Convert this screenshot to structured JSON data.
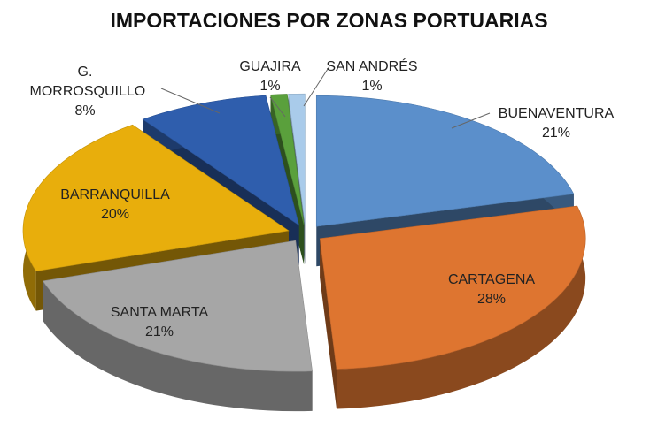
{
  "chart_data": {
    "type": "pie",
    "title": "IMPORTACIONES POR ZONAS PORTUARIAS",
    "categories": [
      "BUENAVENTURA",
      "CARTAGENA",
      "SANTA MARTA",
      "BARRANQUILLA",
      "G. MORROSQUILLO",
      "GUAJIRA",
      "SAN ANDRÉS"
    ],
    "values": [
      21,
      28,
      21,
      20,
      8,
      1,
      1
    ],
    "value_labels": [
      "21%",
      "28%",
      "21%",
      "20%",
      "8%",
      "1%",
      "1%"
    ],
    "colors": [
      "#5b8fcb",
      "#de7530",
      "#a6a6a6",
      "#e8ae0c",
      "#2f5ead",
      "#5aa03c",
      "#a9cbea"
    ]
  }
}
